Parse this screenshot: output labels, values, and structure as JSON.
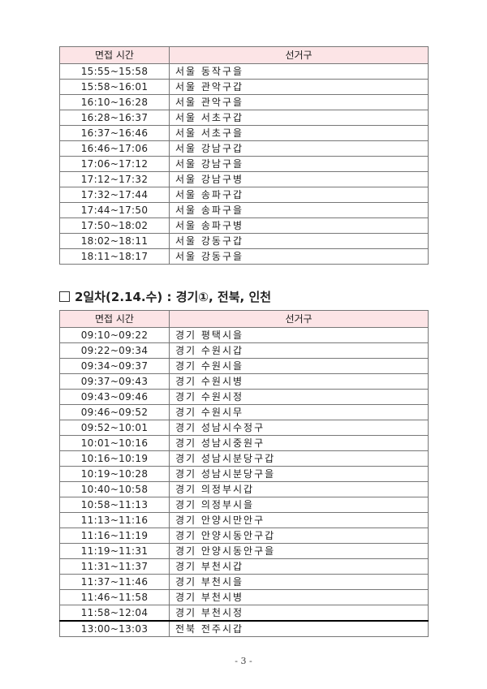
{
  "table_headers": {
    "time": "면접 시간",
    "district": "선거구"
  },
  "table1": [
    {
      "time": "15:55~15:58",
      "district": "서울  동작구을"
    },
    {
      "time": "15:58~16:01",
      "district": "서울  관악구갑"
    },
    {
      "time": "16:10~16:28",
      "district": "서울  관악구을"
    },
    {
      "time": "16:28~16:37",
      "district": "서울  서초구갑"
    },
    {
      "time": "16:37~16:46",
      "district": "서울  서초구을"
    },
    {
      "time": "16:46~17:06",
      "district": "서울  강남구갑"
    },
    {
      "time": "17:06~17:12",
      "district": "서울  강남구을"
    },
    {
      "time": "17:12~17:32",
      "district": "서울  강남구병"
    },
    {
      "time": "17:32~17:44",
      "district": "서울  송파구갑"
    },
    {
      "time": "17:44~17:50",
      "district": "서울  송파구을"
    },
    {
      "time": "17:50~18:02",
      "district": "서울  송파구병"
    },
    {
      "time": "18:02~18:11",
      "district": "서울  강동구갑"
    },
    {
      "time": "18:11~18:17",
      "district": "서울  강동구을"
    }
  ],
  "section2_heading": "2일차(2.14.수) : 경기①, 전북, 인천",
  "table2": [
    {
      "time": "09:10~09:22",
      "district": "경기  평택시을"
    },
    {
      "time": "09:22~09:34",
      "district": "경기  수원시갑"
    },
    {
      "time": "09:34~09:37",
      "district": "경기  수원시을"
    },
    {
      "time": "09:37~09:43",
      "district": "경기  수원시병"
    },
    {
      "time": "09:43~09:46",
      "district": "경기  수원시정"
    },
    {
      "time": "09:46~09:52",
      "district": "경기  수원시무"
    },
    {
      "time": "09:52~10:01",
      "district": "경기  성남시수정구"
    },
    {
      "time": "10:01~10:16",
      "district": "경기  성남시중원구"
    },
    {
      "time": "10:16~10:19",
      "district": "경기  성남시분당구갑"
    },
    {
      "time": "10:19~10:28",
      "district": "경기  성남시분당구을"
    },
    {
      "time": "10:40~10:58",
      "district": "경기  의정부시갑"
    },
    {
      "time": "10:58~11:13",
      "district": "경기  의정부시을"
    },
    {
      "time": "11:13~11:16",
      "district": "경기  안양시만안구"
    },
    {
      "time": "11:16~11:19",
      "district": "경기  안양시동안구갑"
    },
    {
      "time": "11:19~11:31",
      "district": "경기  안양시동안구을"
    },
    {
      "time": "11:31~11:37",
      "district": "경기  부천시갑"
    },
    {
      "time": "11:37~11:46",
      "district": "경기  부천시을"
    },
    {
      "time": "11:46~11:58",
      "district": "경기  부천시병"
    },
    {
      "time": "11:58~12:04",
      "district": "경기  부천시정"
    },
    {
      "time": "13:00~13:03",
      "district": "전북  전주시갑"
    }
  ],
  "page_number": "- 3 -",
  "colors": {
    "header_bg": "#fce4e6"
  }
}
